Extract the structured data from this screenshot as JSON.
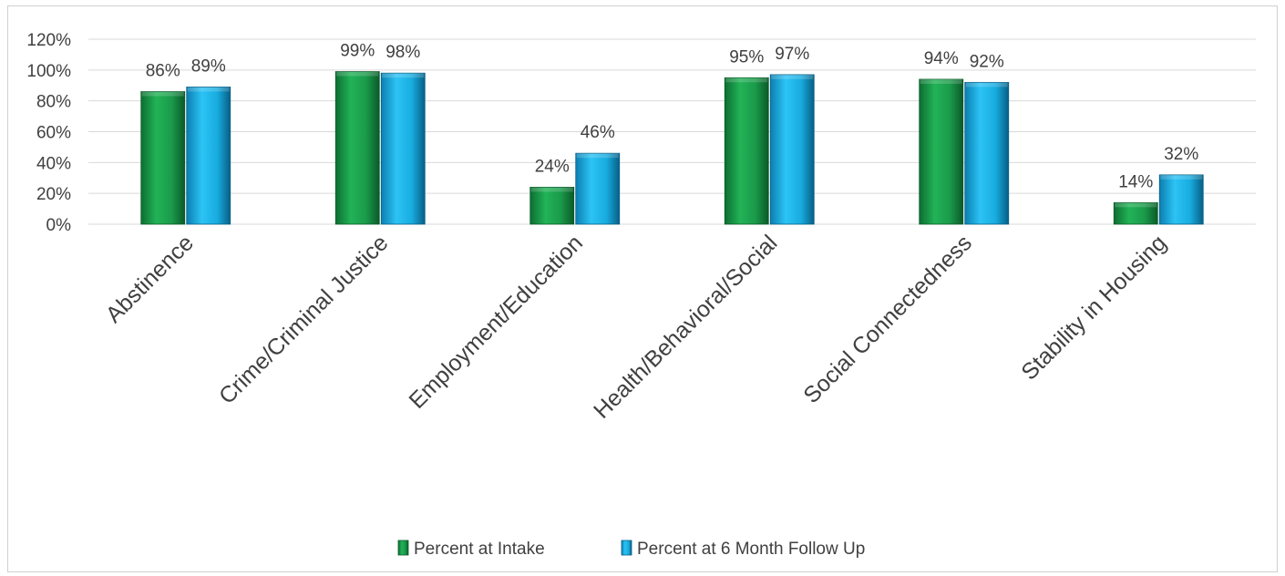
{
  "chart_data": {
    "type": "bar",
    "title": "",
    "xlabel": "",
    "ylabel": "",
    "ylim": [
      0,
      120
    ],
    "yticks": [
      "0%",
      "20%",
      "40%",
      "60%",
      "80%",
      "100%",
      "120%"
    ],
    "grid": true,
    "legend_position": "bottom",
    "categories": [
      "Abstinence",
      "Crime/Criminal Justice",
      "Employment/Education",
      "Health/Behavioral/Social",
      "Social Connectedness",
      "Stability in Housing"
    ],
    "series": [
      {
        "name": "Percent at Intake",
        "color": "#1a9a4a",
        "values": [
          86,
          99,
          24,
          95,
          94,
          14
        ],
        "labels": [
          "86%",
          "99%",
          "24%",
          "95%",
          "94%",
          "14%"
        ]
      },
      {
        "name": "Percent at 6 Month Follow Up",
        "color": "#1ab4ea",
        "values": [
          89,
          98,
          46,
          97,
          92,
          32
        ],
        "labels": [
          "89%",
          "98%",
          "46%",
          "97%",
          "92%",
          "32%"
        ]
      }
    ]
  }
}
